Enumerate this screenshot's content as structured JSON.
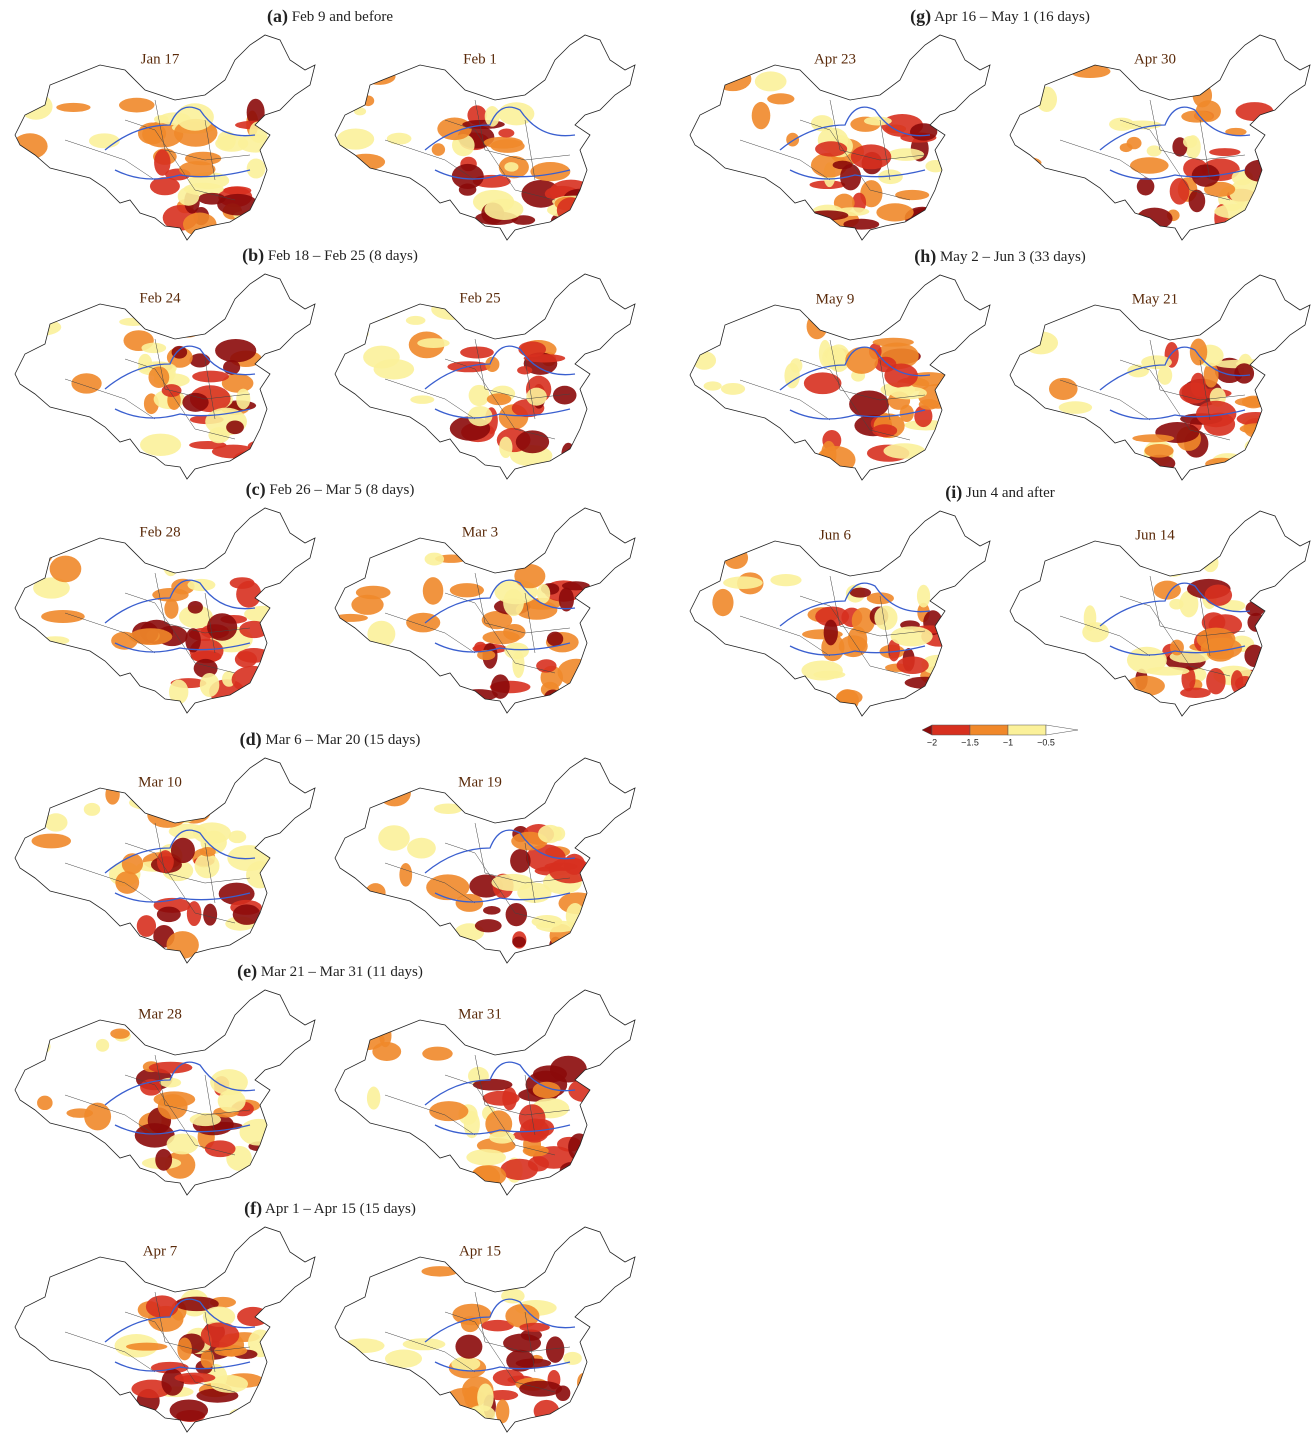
{
  "panels": [
    {
      "letter": "(a)",
      "period": "Feb 9 and before",
      "maps": [
        "Jan 17",
        "Feb 1"
      ]
    },
    {
      "letter": "(b)",
      "period": "Feb 18 – Feb 25  (8 days)",
      "maps": [
        "Feb 24",
        "Feb 25"
      ]
    },
    {
      "letter": "(c)",
      "period": "Feb 26 – Mar 5  (8 days)",
      "maps": [
        "Feb 28",
        "Mar 3"
      ]
    },
    {
      "letter": "(d)",
      "period": "Mar 6 – Mar 20  (15 days)",
      "maps": [
        "Mar 10",
        "Mar 19"
      ]
    },
    {
      "letter": "(e)",
      "period": "Mar 21 – Mar 31  (11 days)",
      "maps": [
        "Mar 28",
        "Mar 31"
      ]
    },
    {
      "letter": "(f)",
      "period": "Apr 1 – Apr 15  (15 days)",
      "maps": [
        "Apr 7",
        "Apr 15"
      ]
    },
    {
      "letter": "(g)",
      "period": "Apr 16 – May 1  (16 days)",
      "maps": [
        "Apr 23",
        "Apr 30"
      ]
    },
    {
      "letter": "(h)",
      "period": "May 2 – Jun 3  (33 days)",
      "maps": [
        "May 9",
        "May 21"
      ]
    },
    {
      "letter": "(i)",
      "period": "Jun 4 and after",
      "maps": [
        "Jun 6",
        "Jun 14"
      ]
    }
  ],
  "colorbar": {
    "ticks": [
      "−2",
      "−1.5",
      "−1",
      "−0.5"
    ]
  }
}
